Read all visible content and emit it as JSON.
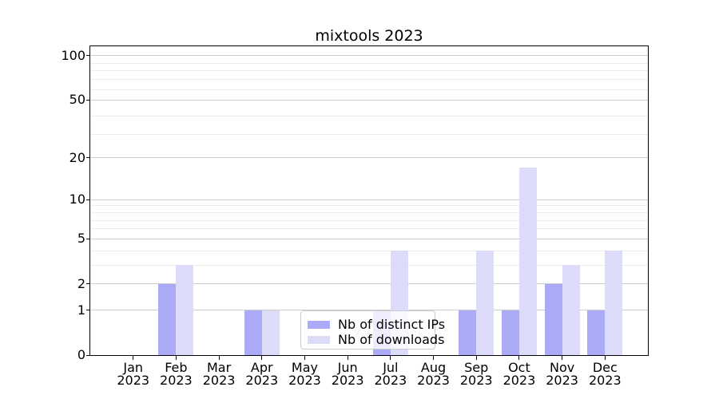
{
  "chart_data": {
    "type": "bar",
    "title": "mixtools 2023",
    "categories": [
      "Jan 2023",
      "Feb 2023",
      "Mar 2023",
      "Apr 2023",
      "May 2023",
      "Jun 2023",
      "Jul 2023",
      "Aug 2023",
      "Sep 2023",
      "Oct 2023",
      "Nov 2023",
      "Dec 2023"
    ],
    "series": [
      {
        "name": "Nb of distinct IPs",
        "color": "#abaaf7",
        "values": [
          0,
          2,
          0,
          1,
          0,
          0,
          1,
          0,
          1,
          1,
          2,
          1
        ]
      },
      {
        "name": "Nb of downloads",
        "color": "#dcdbfa",
        "values": [
          0,
          3,
          0,
          1,
          0,
          0,
          4,
          0,
          4,
          17,
          3,
          4
        ]
      }
    ],
    "xlabel": "",
    "ylabel": "",
    "yscale": "log1p",
    "ylim": [
      0,
      116
    ],
    "yticks": [
      0,
      1,
      2,
      5,
      10,
      20,
      50,
      100
    ],
    "minor_gridlines": [
      3,
      4,
      6,
      7,
      8,
      9,
      29,
      39,
      59,
      69,
      79,
      89
    ],
    "grid": "horizontal",
    "legend": {
      "position": "lower center",
      "frame": true
    }
  },
  "style": {
    "major_grid_color": "#cdcdcd",
    "minor_grid_color": "#ececec",
    "spine_color": "#000000",
    "legend_border_color": "#cccccc",
    "text_color": "#000000",
    "background": "#ffffff"
  }
}
